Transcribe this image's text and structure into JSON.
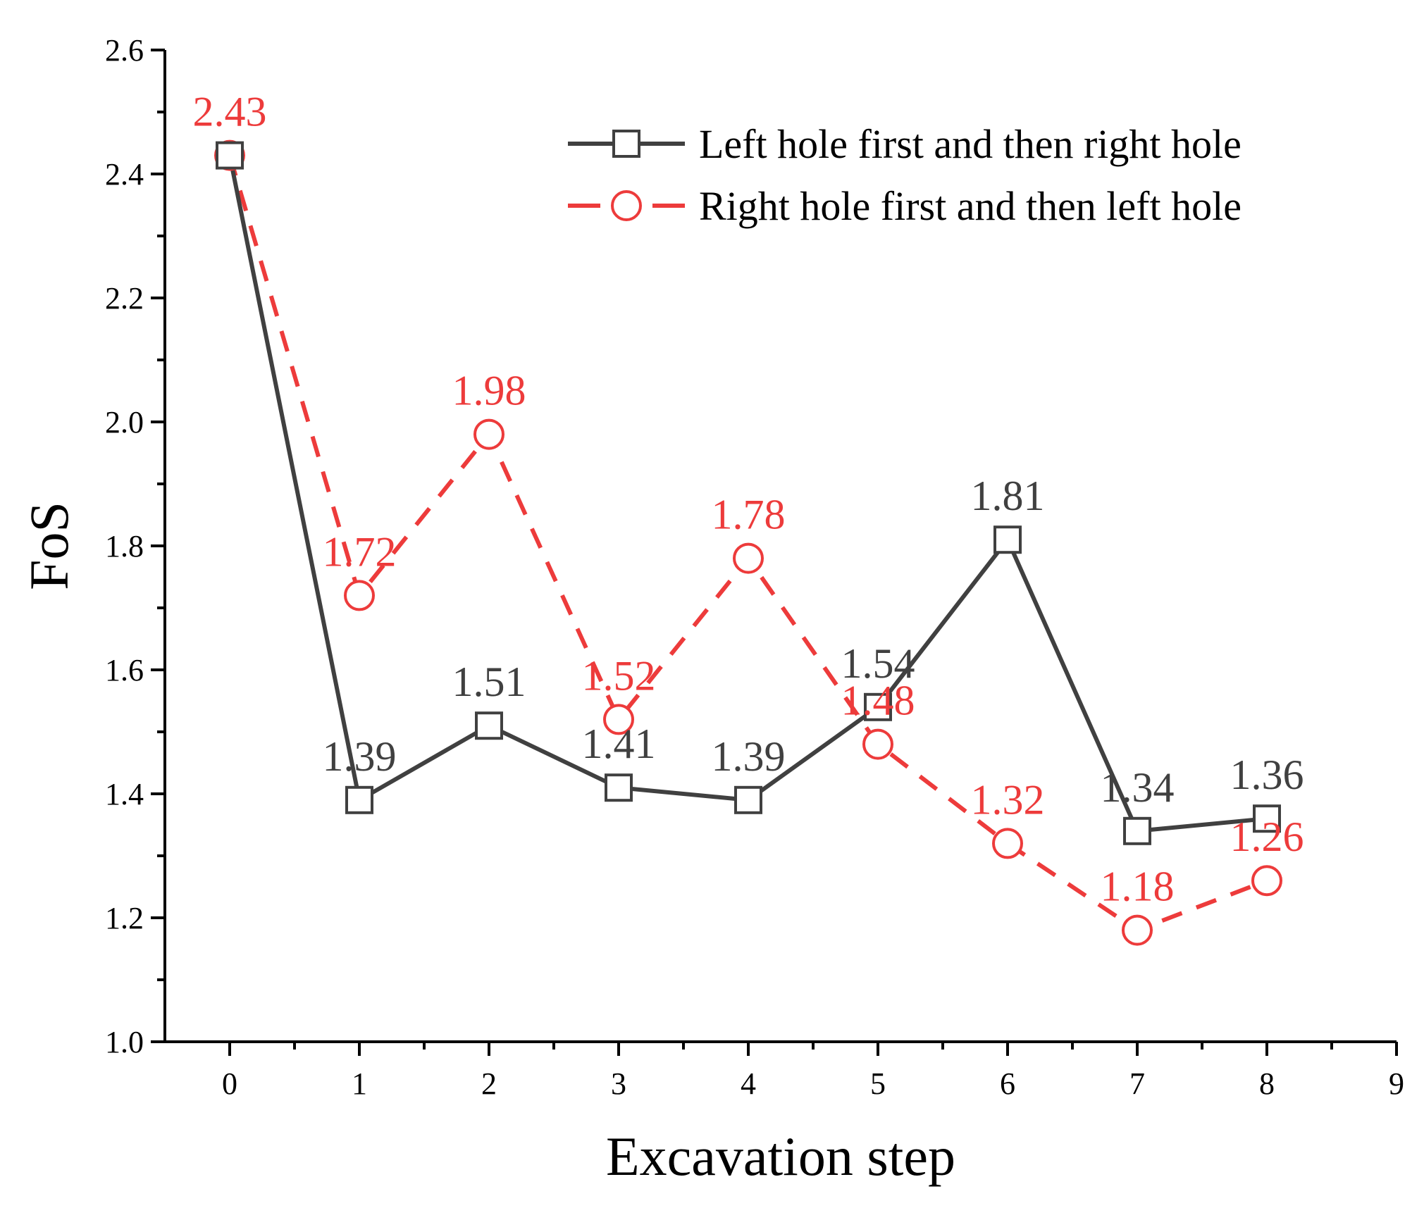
{
  "chart_data": {
    "type": "line",
    "title": "",
    "xlabel": "Excavation step",
    "ylabel": "FoS",
    "xlim": [
      -0.5,
      9
    ],
    "ylim": [
      1.0,
      2.6
    ],
    "x_ticks": [
      "0",
      "1",
      "2",
      "3",
      "4",
      "5",
      "6",
      "7",
      "8",
      "9"
    ],
    "y_ticks": [
      "1.0",
      "1.2",
      "1.4",
      "1.6",
      "1.8",
      "2.0",
      "2.2",
      "2.4",
      "2.6"
    ],
    "grid": false,
    "legend_position": "top-right",
    "x": [
      0,
      1,
      2,
      3,
      4,
      5,
      6,
      7,
      8
    ],
    "series": [
      {
        "name": "Left hole first and then right hole",
        "color": "#404040",
        "marker": "square",
        "line_style": "solid",
        "values": [
          2.43,
          1.39,
          1.51,
          1.41,
          1.39,
          1.54,
          1.81,
          1.34,
          1.36
        ],
        "labels": [
          "",
          "1.39",
          "1.51",
          "1.41",
          "1.39",
          "1.54",
          "1.81",
          "1.34",
          "1.36"
        ]
      },
      {
        "name": "Right hole first and then left hole",
        "color": "#ed3b3b",
        "marker": "circle",
        "line_style": "dashed",
        "values": [
          2.43,
          1.72,
          1.98,
          1.52,
          1.78,
          1.48,
          1.32,
          1.18,
          1.26
        ],
        "labels": [
          "2.43",
          "1.72",
          "1.98",
          "1.52",
          "1.78",
          "1.48",
          "1.32",
          "1.18",
          "1.26"
        ]
      }
    ]
  }
}
